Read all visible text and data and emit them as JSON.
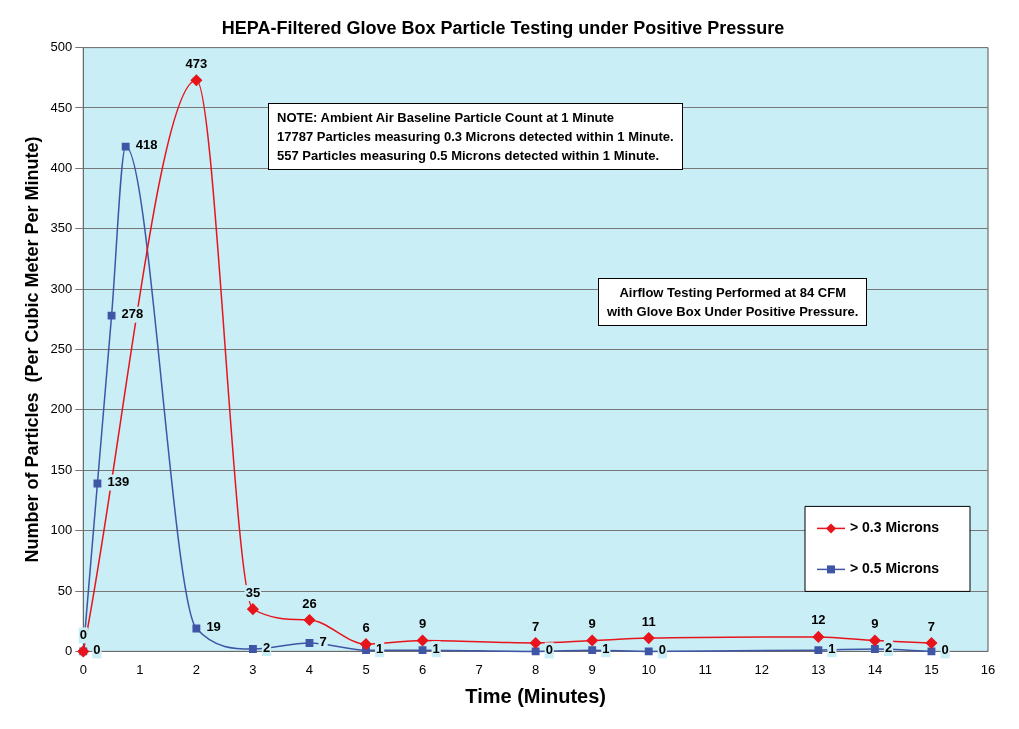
{
  "chart_data": {
    "type": "line",
    "title": "HEPA-Filtered Glove Box Particle Testing under Positive Pressure",
    "xlabel": "Time (Minutes)",
    "ylabel": "Number of Particles  (Per Cubic Meter Per Minute)",
    "series": [
      {
        "name": "> 0.3 Microns",
        "color": "#e8141c",
        "marker": "diamond",
        "x": [
          0,
          2,
          3,
          4,
          5,
          6,
          8,
          9,
          10,
          13,
          14,
          15
        ],
        "values": [
          0,
          473,
          35,
          26,
          6,
          9,
          7,
          9,
          11,
          12,
          9,
          7
        ]
      },
      {
        "name": "> 0.5 Microns",
        "color": "#3f56a6",
        "marker": "square",
        "x": [
          0,
          0.25,
          0.5,
          0.75,
          2,
          3,
          4,
          5,
          6,
          8,
          9,
          10,
          13,
          14,
          15
        ],
        "values": [
          0,
          139,
          278,
          418,
          19,
          2,
          7,
          1,
          1,
          0,
          1,
          0,
          1,
          2,
          0
        ]
      }
    ],
    "xlim": [
      0,
      16
    ],
    "xticks": [
      0,
      1,
      2,
      3,
      4,
      5,
      6,
      7,
      8,
      9,
      10,
      11,
      12,
      13,
      14,
      15,
      16
    ],
    "ylim": [
      0,
      500
    ],
    "yticks": [
      0,
      50,
      100,
      150,
      200,
      250,
      300,
      350,
      400,
      450,
      500
    ],
    "grid": "y",
    "legend": "bottom right",
    "data_labels": true,
    "annotations": [
      "NOTE: Ambient Air Baseline Particle Count at 1 Minute\n17787 Particles measuring 0.3 Microns detected within 1 Minute.\n557 Particles measuring 0.5 Microns detected within 1 Minute.",
      "Airflow Testing Performed at 84 CFM\nwith Glove Box Under Positive Pressure."
    ]
  }
}
